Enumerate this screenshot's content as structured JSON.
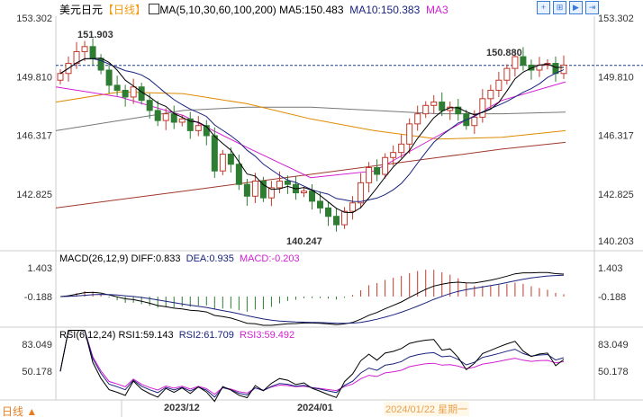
{
  "header": {
    "title": "美元日元",
    "period": "【日线】",
    "ma_label": "MA(5,10,30,60,100,200)",
    "ma5": "MA5:150.483",
    "ma10": "MA10:150.383",
    "ma30": "MA3"
  },
  "toolbar": [
    {
      "icon": "crosshair-icon"
    },
    {
      "icon": "chart-icon"
    },
    {
      "icon": "play-icon"
    },
    {
      "icon": "forward-icon"
    }
  ],
  "macd": {
    "label": "MACD(26,12,9)",
    "diff": "DIFF:0.833",
    "dea": "DEA:0.935",
    "macd": "MACD:-0.203",
    "ticks": [
      "1.403",
      "-0.188"
    ]
  },
  "rsi": {
    "label": "RSI(6,12,24)",
    "rsi1": "RSI1:59.143",
    "rsi2": "RSI2:61.709",
    "rsi3": "RSI3:59.492",
    "ticks": [
      "83.049",
      "50.178"
    ]
  },
  "footer": {
    "period": "日线",
    "arrow": "▲",
    "dates": [
      "2023/12",
      "2024/01"
    ],
    "cursor_date": "2024/01/22 星期一"
  },
  "colors": {
    "up": "#c0392b",
    "down": "#2e7d32",
    "ma5": "#000000",
    "ma10": "#1a237e",
    "ma30": "#d21fd2",
    "ma60": "#e08a00",
    "ma100": "#777777",
    "ma200": "#a0392b",
    "dashed": "#1a3a8a"
  },
  "chart_data": {
    "type": "candlestick",
    "y_ticks": [
      "153.302",
      "149.810",
      "146.317",
      "142.825"
    ],
    "ylim": [
      140.203,
      153.302
    ],
    "last_low_label": "140.203",
    "annotations": {
      "high1": "151.903",
      "high2": "150.880",
      "low": "140.247"
    },
    "reference_price": 150.48,
    "closes": [
      150.0,
      150.6,
      151.3,
      151.6,
      150.9,
      150.2,
      149.3,
      149.0,
      148.6,
      149.2,
      148.4,
      147.8,
      147.2,
      147.6,
      147.1,
      147.3,
      146.6,
      146.9,
      146.3,
      144.2,
      145.2,
      144.6,
      143.4,
      142.7,
      143.6,
      142.6,
      143.2,
      143.6,
      143.4,
      142.9,
      143.0,
      142.4,
      142.0,
      141.5,
      141.0,
      141.8,
      142.3,
      143.5,
      144.4,
      144.0,
      145.0,
      145.3,
      145.8,
      147.0,
      147.6,
      148.1,
      148.3,
      147.8,
      148.0,
      147.6,
      146.9,
      147.4,
      148.5,
      149.0,
      149.6,
      150.3,
      151.0,
      150.5,
      150.2,
      150.5,
      150.6,
      150.0,
      150.5
    ],
    "long_ma": {
      "ma30": [
        149.2,
        148.6,
        147.5,
        145.6,
        143.8,
        144.2,
        146.3,
        148.4,
        149.5
      ],
      "ma60": [
        148.3,
        148.9,
        148.8,
        148.2,
        147.3,
        146.6,
        146.1,
        146.2,
        146.6
      ],
      "ma100": [
        146.6,
        147.2,
        147.8,
        148.0,
        148.0,
        147.8,
        147.6,
        147.6,
        147.7
      ],
      "ma200": [
        142.0,
        142.5,
        143.0,
        143.5,
        144.0,
        144.5,
        145.0,
        145.5,
        145.9
      ]
    }
  }
}
